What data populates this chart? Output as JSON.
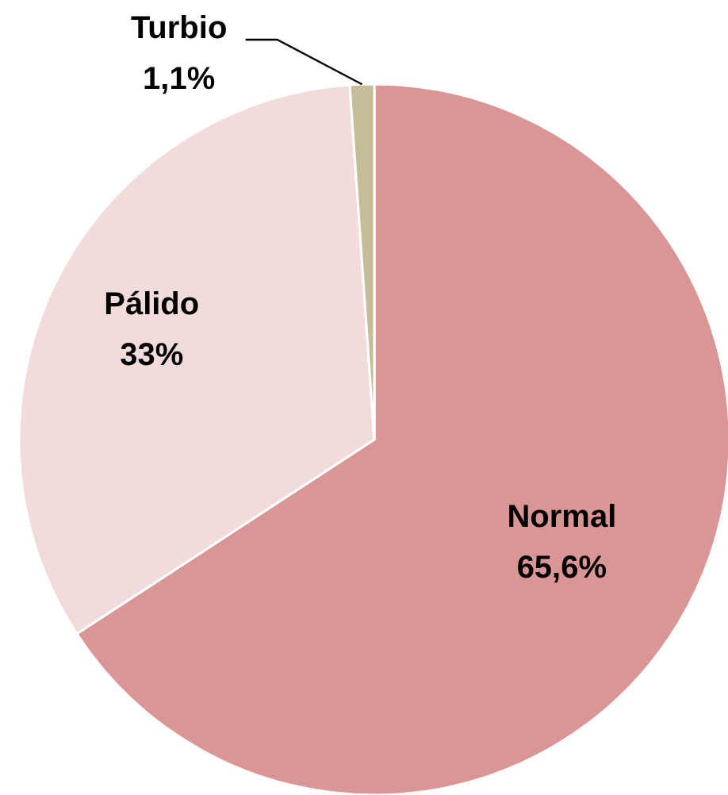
{
  "chart_data": {
    "type": "pie",
    "categories": [
      "Normal",
      "Pálido",
      "Turbio"
    ],
    "values": [
      65.6,
      33,
      1.1
    ],
    "value_labels": [
      "65,6%",
      "33%",
      "1,1%"
    ],
    "colors": [
      "#d99694",
      "#f2dcdb",
      "#c4bd97"
    ]
  }
}
